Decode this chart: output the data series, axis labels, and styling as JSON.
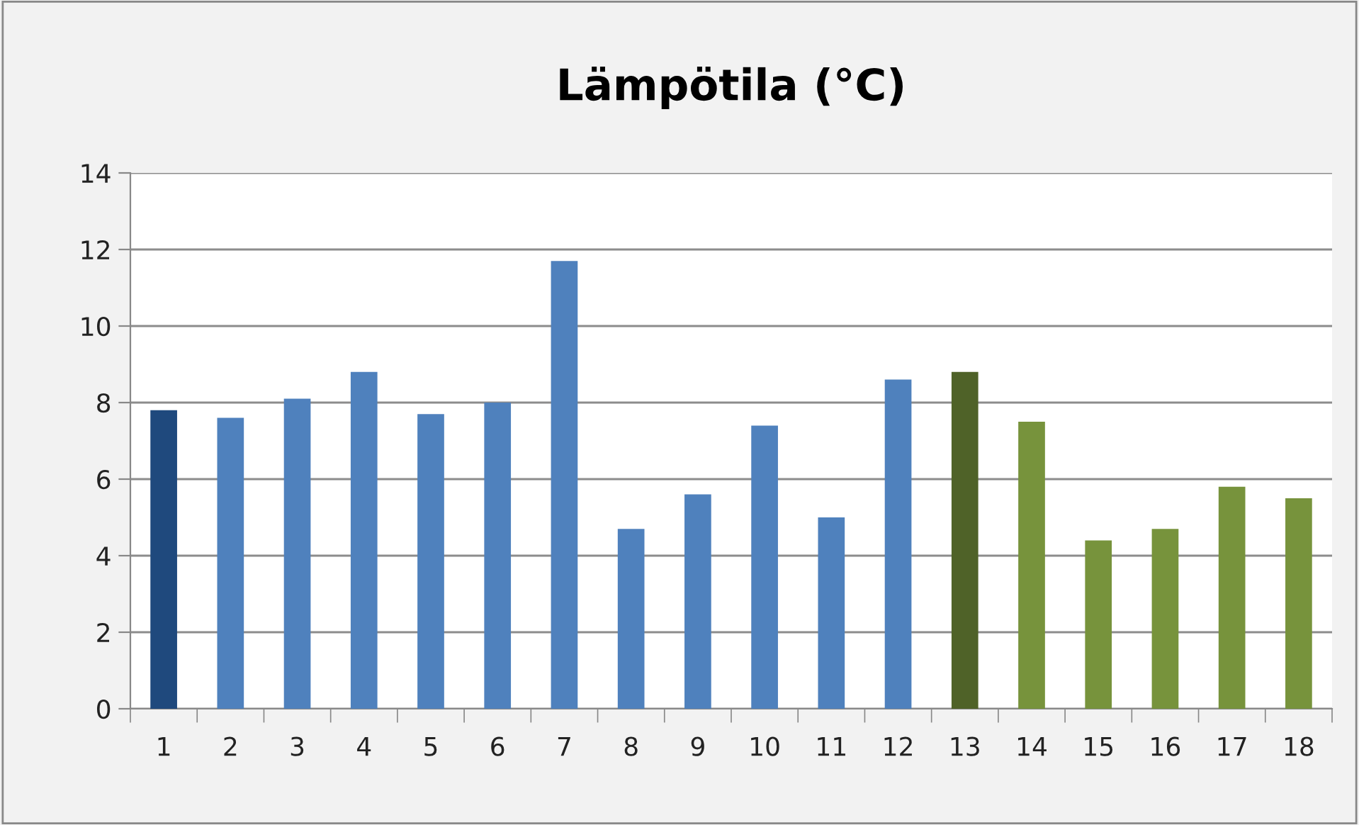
{
  "chart_data": {
    "type": "bar",
    "title": "Lämpötila (°C)",
    "categories": [
      "1",
      "2",
      "3",
      "4",
      "5",
      "6",
      "7",
      "8",
      "9",
      "10",
      "11",
      "12",
      "13",
      "14",
      "15",
      "16",
      "17",
      "18"
    ],
    "values": [
      7.8,
      7.6,
      8.1,
      8.8,
      7.7,
      8.0,
      11.7,
      4.7,
      5.6,
      7.4,
      5.0,
      8.6,
      8.8,
      7.5,
      4.4,
      4.7,
      5.8,
      5.5
    ],
    "colors": [
      "#1f497d",
      "#4f81bd",
      "#4f81bd",
      "#4f81bd",
      "#4f81bd",
      "#4f81bd",
      "#4f81bd",
      "#4f81bd",
      "#4f81bd",
      "#4f81bd",
      "#4f81bd",
      "#4f81bd",
      "#4f6228",
      "#77933c",
      "#77933c",
      "#77933c",
      "#77933c",
      "#77933c"
    ],
    "ylim": [
      0,
      14
    ],
    "yticks": [
      0,
      2,
      4,
      6,
      8,
      10,
      12,
      14
    ],
    "grid": "y",
    "legend": false
  }
}
